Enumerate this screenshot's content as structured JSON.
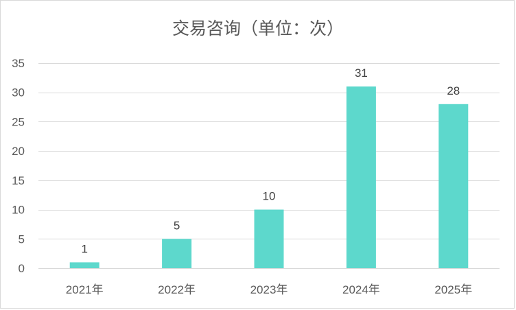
{
  "chart_data": {
    "type": "bar",
    "title": "交易咨询（单位：次）",
    "categories": [
      "2021年",
      "2022年",
      "2023年",
      "2024年",
      "2025年"
    ],
    "values": [
      1,
      5,
      10,
      31,
      28
    ],
    "ylim": [
      0,
      35
    ],
    "yticks": [
      0,
      5,
      10,
      15,
      20,
      25,
      30,
      35
    ],
    "grid": true,
    "legend": "none",
    "bar_color": "#5dd8cc",
    "grid_color": "#d9d9d9",
    "text_color": "#595959",
    "label_color": "#404040"
  }
}
